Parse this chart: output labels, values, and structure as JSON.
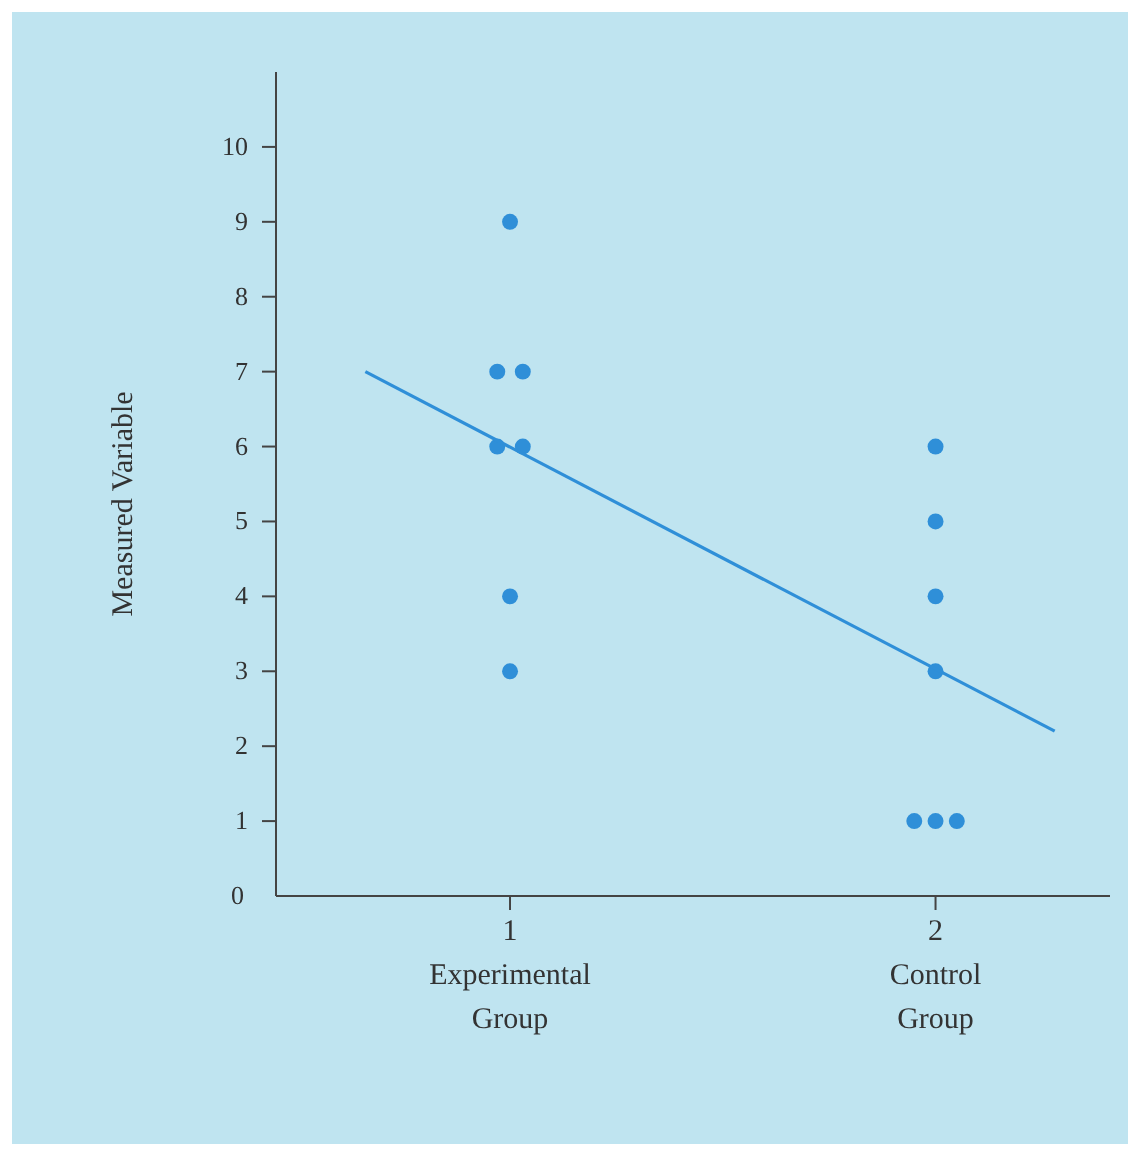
{
  "chart_data": {
    "type": "scatter",
    "ylabel": "Measured Variable",
    "xlim": [
      0.45,
      2.41
    ],
    "ylim": [
      0,
      11
    ],
    "xticks": [
      {
        "value": 1,
        "label": "1\nExperimental\nGroup"
      },
      {
        "value": 2,
        "label": "2\nControl\nGroup"
      }
    ],
    "yticks": [
      0,
      1,
      2,
      3,
      4,
      5,
      6,
      7,
      8,
      9,
      10
    ],
    "grid": false,
    "series": [
      {
        "color": "#2f8fd8",
        "marker": "circle",
        "x": [
          1,
          0.97,
          1.03,
          0.97,
          1.03,
          1,
          1,
          2,
          2,
          2,
          2,
          1.95,
          2,
          2.05
        ],
        "values": [
          9,
          7,
          7,
          6,
          6,
          4,
          3,
          6,
          5,
          4,
          3,
          1,
          1,
          1
        ]
      },
      {
        "type": "line",
        "color": "#2f8fd8",
        "marker": "none",
        "line_style": "solid",
        "x": [
          0.66,
          2.28
        ],
        "values": [
          7,
          2.2
        ]
      }
    ]
  }
}
